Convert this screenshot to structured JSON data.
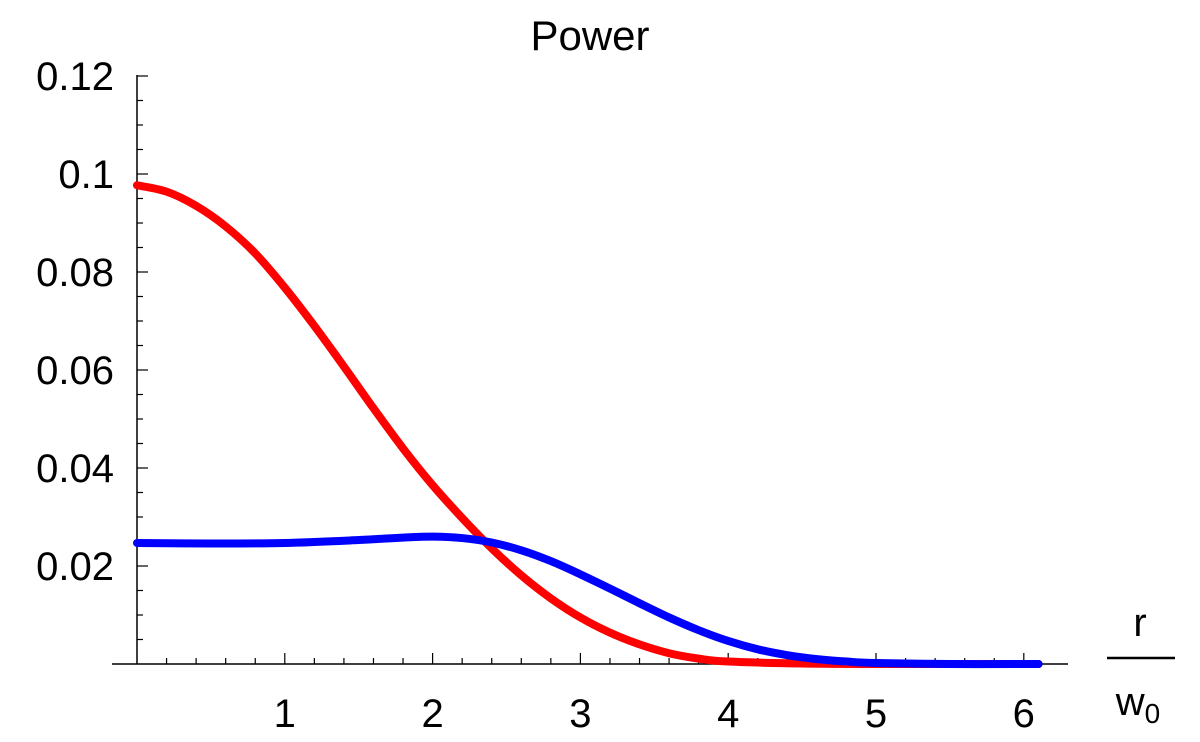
{
  "chart_data": {
    "type": "line",
    "title": "Power",
    "xlabel_numerator": "r",
    "xlabel_denominator_base": "w",
    "xlabel_denominator_sub": "0",
    "xlim": [
      0,
      6.2
    ],
    "ylim": [
      0,
      0.12
    ],
    "x_ticks": [
      1,
      2,
      3,
      4,
      5,
      6
    ],
    "x_tick_labels": [
      "1",
      "2",
      "3",
      "4",
      "5",
      "6"
    ],
    "y_ticks": [
      0.02,
      0.04,
      0.06,
      0.08,
      0.1,
      0.12
    ],
    "y_tick_labels": [
      "0.02",
      "0.04",
      "0.06",
      "0.08",
      "0.1",
      "0.12"
    ],
    "grid": false,
    "series": [
      {
        "color": "#ff0000",
        "x": [
          0,
          0.2,
          0.4,
          0.6,
          0.8,
          1.0,
          1.2,
          1.4,
          1.6,
          1.8,
          2.0,
          2.2,
          2.4,
          2.6,
          2.8,
          3.0,
          3.2,
          3.4,
          3.6,
          3.8,
          4.0,
          4.5,
          5.0,
          5.5,
          6.0,
          6.1
        ],
        "y": [
          0.0977,
          0.0964,
          0.0935,
          0.0893,
          0.0838,
          0.0768,
          0.069,
          0.0607,
          0.0522,
          0.044,
          0.0365,
          0.0298,
          0.0236,
          0.0181,
          0.0134,
          0.0095,
          0.0064,
          0.004,
          0.0022,
          0.0011,
          0.0005,
          0.0001,
          0.0,
          0.0,
          0.0,
          0.0
        ]
      },
      {
        "color": "#0000ff",
        "x": [
          0,
          0.5,
          1.0,
          1.5,
          1.8,
          2.0,
          2.2,
          2.4,
          2.6,
          2.8,
          3.0,
          3.2,
          3.4,
          3.6,
          3.8,
          4.0,
          4.2,
          4.4,
          4.6,
          4.8,
          5.0,
          5.5,
          6.0,
          6.1
        ],
        "y": [
          0.0247,
          0.0246,
          0.0247,
          0.0253,
          0.0258,
          0.026,
          0.0257,
          0.0248,
          0.0232,
          0.021,
          0.0183,
          0.0154,
          0.0124,
          0.0095,
          0.0069,
          0.0047,
          0.003,
          0.0018,
          0.001,
          0.0005,
          0.0002,
          0.0,
          0.0,
          0.0
        ]
      }
    ]
  }
}
